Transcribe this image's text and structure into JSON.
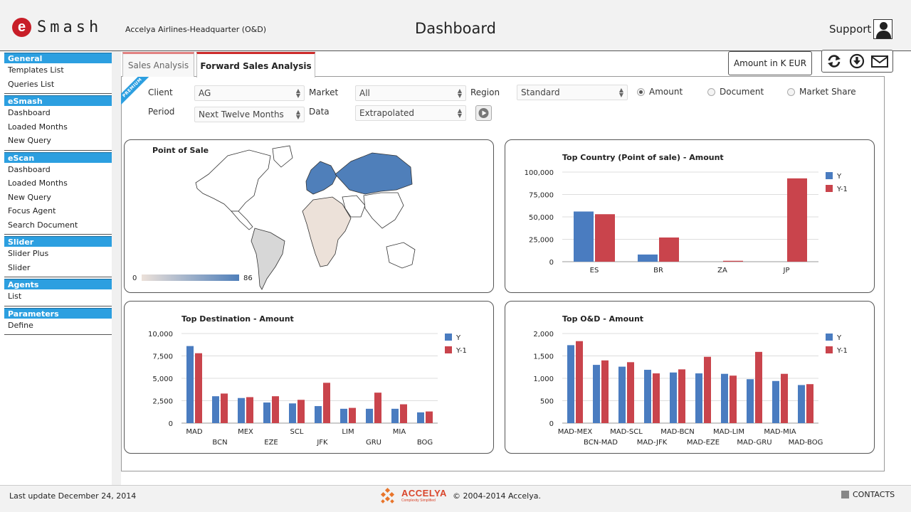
{
  "header": {
    "logo_letter": "e",
    "logo_text": "Smash",
    "organization": "Accelya Airlines-Headquarter (O&D)",
    "title": "Dashboard",
    "support_label": "Support"
  },
  "sidebar": {
    "sections": [
      {
        "title": "General",
        "items": [
          "Templates List",
          "Queries List"
        ]
      },
      {
        "title": "eSmash",
        "items": [
          "Dashboard",
          "Loaded Months",
          "New Query"
        ]
      },
      {
        "title": "eScan",
        "items": [
          "Dashboard",
          "Loaded Months",
          "New Query",
          "Focus Agent",
          "Search Document"
        ]
      },
      {
        "title": "Slider",
        "items": [
          "Slider Plus",
          "Slider"
        ]
      },
      {
        "title": "Agents",
        "items": [
          "List"
        ]
      },
      {
        "title": "Parameters",
        "items": [
          "Define"
        ]
      }
    ]
  },
  "tabs": [
    {
      "label": "Sales Analysis",
      "active": false
    },
    {
      "label": "Forward Sales Analysis",
      "active": true
    }
  ],
  "amount_unit": "Amount in K  EUR",
  "tools": [
    "refresh-icon",
    "download-icon",
    "mail-icon"
  ],
  "premium_badge": "PREMIUM",
  "filters": {
    "client": {
      "label": "Client",
      "value": "AG"
    },
    "period": {
      "label": "Period",
      "value": "Next Twelve Months"
    },
    "market": {
      "label": "Market",
      "value": "All"
    },
    "data": {
      "label": "Data",
      "value": "Extrapolated"
    },
    "region": {
      "label": "Region",
      "value": "Standard"
    },
    "measures": [
      {
        "label": "Amount",
        "selected": true
      },
      {
        "label": "Document",
        "selected": false
      },
      {
        "label": "Market Share",
        "selected": false
      }
    ]
  },
  "map": {
    "title": "Point of Sale",
    "scale_min": "0",
    "scale_max": "86",
    "colors": {
      "low": "#ece1d9",
      "high": "#4f7fba"
    }
  },
  "colors": {
    "y": "#4a7cc0",
    "y1": "#c9444c",
    "accent": "#2c9fe0",
    "tab_red": "#cc2a2a"
  },
  "chart_data": [
    {
      "type": "bar",
      "title": "Top Country (Point of sale) - Amount",
      "categories": [
        "ES",
        "BR",
        "ZA",
        "JP"
      ],
      "series": [
        {
          "name": "Y",
          "values": [
            56000,
            8000,
            0,
            0
          ]
        },
        {
          "name": "Y-1",
          "values": [
            53000,
            27000,
            1000,
            93000
          ]
        }
      ],
      "yticks": [
        "100,000",
        "75,000",
        "50,000",
        "25,000",
        "0"
      ],
      "ylim": [
        0,
        100000
      ],
      "legend": "top-right"
    },
    {
      "type": "bar",
      "title": "Top Destination - Amount",
      "categories": [
        "MAD",
        "BCN",
        "MEX",
        "EZE",
        "SCL",
        "JFK",
        "LIM",
        "GRU",
        "MIA",
        "BOG"
      ],
      "series": [
        {
          "name": "Y",
          "values": [
            8600,
            3000,
            2800,
            2300,
            2200,
            1900,
            1600,
            1600,
            1600,
            1200
          ]
        },
        {
          "name": "Y-1",
          "values": [
            7800,
            3300,
            2900,
            3000,
            2600,
            4500,
            1700,
            3400,
            2100,
            1300
          ]
        }
      ],
      "yticks": [
        "10,000",
        "7,500",
        "5,000",
        "2,500",
        "0"
      ],
      "ylim": [
        0,
        10000
      ],
      "legend": "top-right"
    },
    {
      "type": "bar",
      "title": "Top O&D - Amount",
      "categories": [
        "MAD-MEX",
        "BCN-MAD",
        "MAD-SCL",
        "MAD-JFK",
        "MAD-BCN",
        "MAD-EZE",
        "MAD-LIM",
        "MAD-GRU",
        "MAD-MIA",
        "MAD-BOG"
      ],
      "series": [
        {
          "name": "Y",
          "values": [
            1740,
            1300,
            1260,
            1190,
            1130,
            1110,
            1100,
            980,
            940,
            850
          ]
        },
        {
          "name": "Y-1",
          "values": [
            1830,
            1400,
            1360,
            1110,
            1200,
            1480,
            1060,
            1590,
            1100,
            870
          ]
        }
      ],
      "yticks": [
        "2,000",
        "1,500",
        "1,000",
        "500",
        "0"
      ],
      "ylim": [
        0,
        2000
      ],
      "legend": "top-right"
    }
  ],
  "footer": {
    "last_update": "Last update December 24, 2014",
    "brand": "ACCELYA",
    "brand_tagline": "Complexity Simplified",
    "copyright": "© 2004-2014 Accelya.",
    "contacts": "CONTACTS"
  }
}
